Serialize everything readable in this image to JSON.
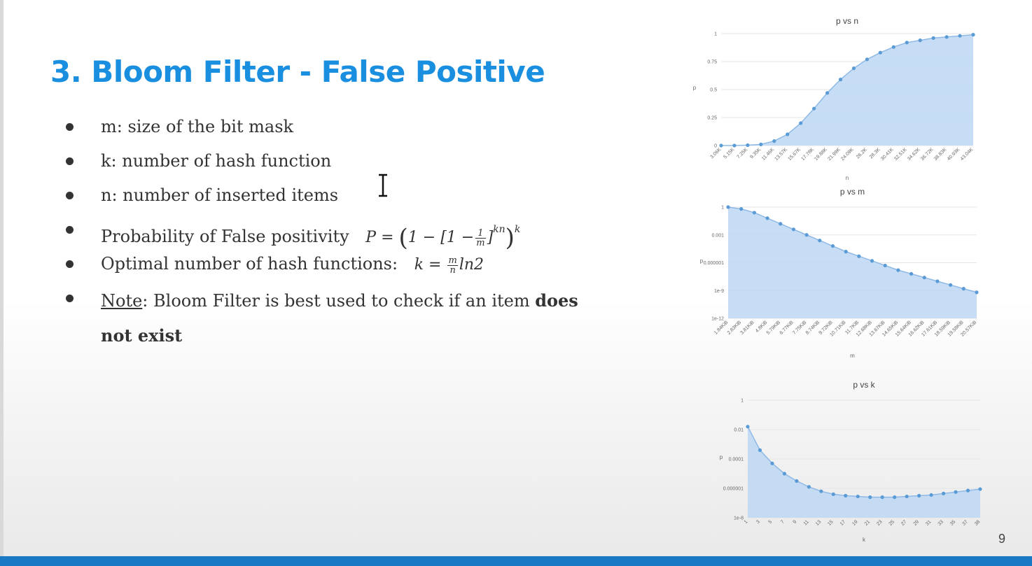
{
  "slide": {
    "title": "3. Bloom Filter - False Positive",
    "page_number": "9",
    "bullets": [
      {
        "text": "m: size of the bit mask"
      },
      {
        "text": "k: number of hash function"
      },
      {
        "text": "n: number of inserted items"
      },
      {
        "text": "Probability of False positivity",
        "formula": {
          "lhs": "P =",
          "open": "(",
          "one": "1 − [1 −",
          "frac_num": "1",
          "frac_den": "m",
          "close_bracket": "]",
          "exp_inner": "kn",
          "close": ")",
          "exp_outer": "k"
        }
      },
      {
        "text": "Optimal number of hash functions:",
        "formula": {
          "lhs": "k =",
          "frac_num": "m",
          "frac_den": "n",
          "rhs": "ln2"
        }
      },
      {
        "note_label": "Note",
        "note_text": ": Bloom Filter is best used to check if an item ",
        "note_bold": "does not exist"
      }
    ]
  },
  "colors": {
    "title": "#1a8fe0",
    "bar": "#1a79c5",
    "series_fill": "#bcd7f3",
    "series_line": "#8fb9e6",
    "series_point": "#5b9bd5"
  },
  "chart_data": [
    {
      "type": "area",
      "title": "p vs n",
      "xlabel": "n",
      "ylabel": "p",
      "yticks": [
        "0",
        "0.25",
        "0.5",
        "0.75",
        "1"
      ],
      "ylim": [
        0,
        1
      ],
      "categories": [
        "3.06K",
        "5.15K",
        "7.25K",
        "9.35K",
        "11.46K",
        "13.57K",
        "15.67K",
        "17.78K",
        "19.88K",
        "21.99K",
        "24.09K",
        "26.2K",
        "28.3K",
        "30.41K",
        "32.51K",
        "34.62K",
        "36.72K",
        "38.83K",
        "40.93K",
        "43.04K"
      ],
      "values": [
        0.0,
        0.0,
        0.003,
        0.01,
        0.04,
        0.1,
        0.2,
        0.33,
        0.47,
        0.59,
        0.69,
        0.77,
        0.83,
        0.88,
        0.92,
        0.94,
        0.96,
        0.97,
        0.98,
        0.99
      ]
    },
    {
      "type": "area",
      "title": "p vs m",
      "xlabel": "m",
      "ylabel": "p",
      "yscale": "log",
      "yticks": [
        "1e-12",
        "1e-9",
        "0.000001",
        "0.001",
        "1"
      ],
      "ylim_log10": [
        -12,
        0
      ],
      "categories": [
        "1.84KiB",
        "2.83KiB",
        "3.81KiB",
        "4.8KiB",
        "5.79KiB",
        "6.77KiB",
        "7.75KiB",
        "8.74KiB",
        "9.72KiB",
        "10.71KiB",
        "11.7KiB",
        "12.68KiB",
        "13.67KiB",
        "14.65KiB",
        "15.64KiB",
        "16.62KiB",
        "17.61KiB",
        "18.59KiB",
        "19.58KiB",
        "20.57KiB"
      ],
      "values_log10": [
        0,
        -0.2,
        -0.6,
        -1.2,
        -1.8,
        -2.4,
        -3.0,
        -3.6,
        -4.2,
        -4.8,
        -5.3,
        -5.8,
        -6.3,
        -6.8,
        -7.2,
        -7.6,
        -8.0,
        -8.4,
        -8.8,
        -9.2
      ]
    },
    {
      "type": "area",
      "title": "p vs k",
      "xlabel": "k",
      "ylabel": "p",
      "yscale": "log",
      "yticks": [
        "1e-8",
        "0.000001",
        "0.0001",
        "0.01",
        "1"
      ],
      "ylim_log10": [
        -8,
        0
      ],
      "categories": [
        "1",
        "3",
        "5",
        "7",
        "9",
        "11",
        "13",
        "15",
        "17",
        "19",
        "21",
        "23",
        "25",
        "27",
        "29",
        "31",
        "33",
        "35",
        "37",
        "38"
      ],
      "values_log10": [
        -1.8,
        -3.4,
        -4.3,
        -5.0,
        -5.5,
        -5.9,
        -6.2,
        -6.4,
        -6.5,
        -6.55,
        -6.6,
        -6.6,
        -6.6,
        -6.55,
        -6.5,
        -6.45,
        -6.35,
        -6.25,
        -6.15,
        -6.05
      ]
    }
  ]
}
